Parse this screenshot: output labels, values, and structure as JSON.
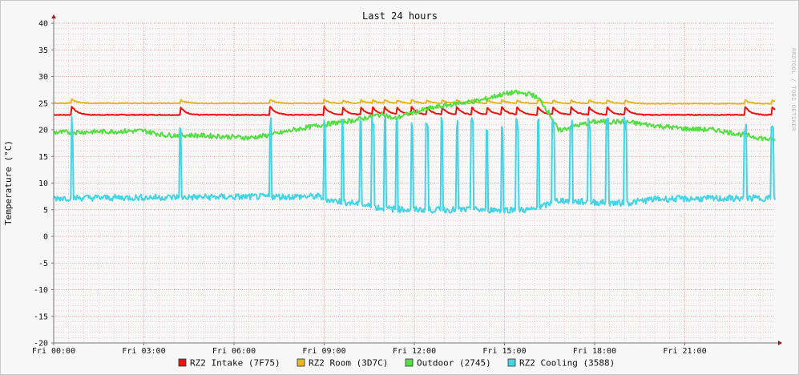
{
  "chart_data": {
    "type": "line",
    "title": "Last 24 hours",
    "ylabel": "Temperature (°C)",
    "xlabel": "",
    "watermark": "RRDTOOL / TOBI OETIKER",
    "x_range_hours": [
      0,
      24
    ],
    "ylim": [
      -20,
      40
    ],
    "y_ticks": [
      40,
      35,
      30,
      25,
      20,
      15,
      10,
      5,
      0,
      -5,
      -10,
      -15,
      -20
    ],
    "x_ticks": [
      {
        "hour": 0,
        "label": "Fri 00:00"
      },
      {
        "hour": 3,
        "label": "Fri 03:00"
      },
      {
        "hour": 6,
        "label": "Fri 06:00"
      },
      {
        "hour": 9,
        "label": "Fri 09:00"
      },
      {
        "hour": 12,
        "label": "Fri 12:00"
      },
      {
        "hour": 15,
        "label": "Fri 15:00"
      },
      {
        "hour": 18,
        "label": "Fri 18:00"
      },
      {
        "hour": 21,
        "label": "Fri 21:00"
      }
    ],
    "grid": true,
    "legend_position": "bottom",
    "colors": {
      "grid_minor": "#e9b7b7",
      "grid_major": "#d98c8c",
      "axis": "#777777",
      "arrow": "#a11a1a"
    },
    "series": [
      {
        "name": "RZ2 Intake (7F75)",
        "color": "#ee1111",
        "base": [
          [
            0,
            22.8
          ],
          [
            24,
            22.8
          ]
        ],
        "spike_hours": [
          0.6,
          4.2,
          7.2,
          9.0,
          9.6,
          10.2,
          10.6,
          11.0,
          11.4,
          11.9,
          12.4,
          12.9,
          13.4,
          13.9,
          14.4,
          14.9,
          15.4,
          16.1,
          16.6,
          17.2,
          17.8,
          18.4,
          19.0,
          23.0,
          23.9
        ],
        "spike_height": 1.6,
        "spike_decay": 0.18
      },
      {
        "name": "RZ2 Room (3D7C)",
        "color": "#e6b71e",
        "base": [
          [
            0,
            25.0
          ],
          [
            24,
            24.9
          ]
        ],
        "spike_hours": [
          0.6,
          4.2,
          7.2,
          9.0,
          9.6,
          10.2,
          10.6,
          11.0,
          11.4,
          11.9,
          12.4,
          12.9,
          13.4,
          13.9,
          14.4,
          14.9,
          15.4,
          16.1,
          16.6,
          17.2,
          17.8,
          18.4,
          19.0,
          23.0,
          23.9
        ],
        "spike_height": 0.7,
        "spike_decay": 0.18
      },
      {
        "name": "Outdoor (2745)",
        "color": "#55dd44",
        "points": [
          [
            0,
            19.5
          ],
          [
            1,
            19.6
          ],
          [
            2,
            19.7
          ],
          [
            3,
            19.8
          ],
          [
            3.7,
            19.0
          ],
          [
            4.5,
            19.0
          ],
          [
            5.5,
            18.8
          ],
          [
            6.5,
            18.5
          ],
          [
            7.2,
            19.0
          ],
          [
            8.0,
            20.0
          ],
          [
            9.0,
            21.0
          ],
          [
            10.0,
            21.8
          ],
          [
            11.0,
            23.0
          ],
          [
            11.3,
            22.0
          ],
          [
            11.8,
            23.0
          ],
          [
            12.5,
            24.0
          ],
          [
            13.5,
            25.0
          ],
          [
            14.2,
            25.5
          ],
          [
            14.8,
            26.5
          ],
          [
            15.3,
            27.0
          ],
          [
            15.9,
            26.7
          ],
          [
            16.2,
            25.5
          ],
          [
            16.5,
            23.0
          ],
          [
            16.8,
            19.8
          ],
          [
            17.4,
            20.8
          ],
          [
            18.0,
            21.5
          ],
          [
            19.0,
            21.5
          ],
          [
            20.0,
            20.8
          ],
          [
            21.0,
            20.2
          ],
          [
            22.0,
            20.0
          ],
          [
            23.0,
            19.0
          ],
          [
            24.0,
            18.0
          ]
        ]
      },
      {
        "name": "RZ2 Cooling (3588)",
        "color": "#44d4e4",
        "base": [
          [
            0,
            7.2
          ],
          [
            8.8,
            7.5
          ],
          [
            9.2,
            6.8
          ],
          [
            10.0,
            6.2
          ],
          [
            11.0,
            5.2
          ],
          [
            12.0,
            5.0
          ],
          [
            14.0,
            5.0
          ],
          [
            16.0,
            5.0
          ],
          [
            16.8,
            6.8
          ],
          [
            17.5,
            6.5
          ],
          [
            19.0,
            6.2
          ],
          [
            20.0,
            7.0
          ],
          [
            24.0,
            7.2
          ]
        ],
        "spike_hours": [
          0.6,
          4.2,
          7.2,
          9.0,
          9.6,
          10.2,
          10.6,
          11.0,
          11.4,
          11.9,
          12.4,
          12.9,
          13.4,
          13.9,
          14.4,
          14.9,
          15.4,
          16.1,
          16.6,
          17.2,
          17.8,
          18.4,
          19.0,
          23.0,
          23.9
        ],
        "spike_top": 22.5
      }
    ]
  }
}
